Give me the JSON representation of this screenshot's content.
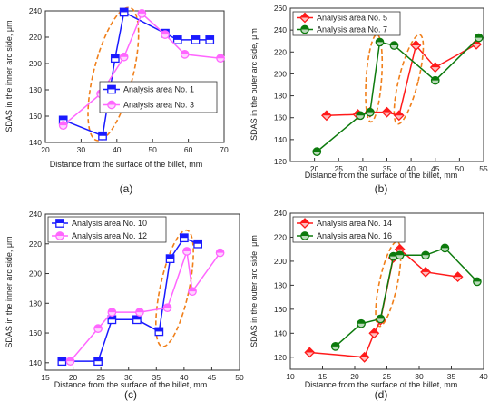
{
  "chart_data": [
    {
      "type": "line",
      "panel_label": "(a)",
      "xlabel": "Distance from the surface of the billet, mm",
      "ylabel": "SDAS in the inner arc side, μm",
      "xlim": [
        20,
        70
      ],
      "ylim": [
        140,
        240
      ],
      "xticks": [
        20,
        30,
        40,
        50,
        60,
        70
      ],
      "yticks": [
        140,
        160,
        180,
        200,
        220,
        240
      ],
      "legend_position": "center-right",
      "series": [
        {
          "name": "Analysis area No. 1",
          "color": "#1a1aff",
          "marker": "square",
          "x": [
            25,
            36,
            39.5,
            42,
            53.5,
            57,
            62,
            66
          ],
          "y": [
            157,
            145,
            204,
            239,
            223,
            218,
            218,
            218
          ]
        },
        {
          "name": "Analysis area No. 3",
          "color": "#ff66ff",
          "marker": "circle",
          "x": [
            25,
            35.5,
            42,
            47,
            53.5,
            59,
            69
          ],
          "y": [
            153,
            177,
            205,
            238,
            222,
            207,
            204
          ]
        }
      ],
      "annotation_ellipse": {
        "center": [
          39,
          192
        ],
        "rx": 5.5,
        "ry": 52,
        "rotation": 14
      }
    },
    {
      "type": "line",
      "panel_label": "(b)",
      "xlabel": "Distance from the surface of the billet, mm",
      "ylabel": "SDAS in the outer arc side, μm",
      "xlim": [
        15,
        55
      ],
      "ylim": [
        120,
        260
      ],
      "xticks": [
        20,
        25,
        30,
        35,
        40,
        45,
        50,
        55
      ],
      "yticks": [
        120,
        140,
        160,
        180,
        200,
        220,
        240,
        260
      ],
      "legend_position": "top-left",
      "series": [
        {
          "name": "Analysis area No. 5",
          "color": "#ff1a1a",
          "marker": "diamond",
          "x": [
            22.5,
            29,
            31.5,
            35,
            37.5,
            41,
            45,
            53.5
          ],
          "y": [
            162,
            163,
            165,
            165,
            162,
            226,
            206,
            227
          ]
        },
        {
          "name": "Analysis area No. 7",
          "color": "#0d7a0d",
          "marker": "circle",
          "x": [
            20.5,
            29.5,
            31.5,
            33.5,
            36.5,
            45,
            54
          ],
          "y": [
            129,
            162,
            165,
            229,
            226,
            194,
            233
          ]
        }
      ],
      "annotation_ellipses": [
        {
          "center": [
            32.3,
            196
          ],
          "rx": 1.6,
          "ry": 40,
          "rotation": 4
        },
        {
          "center": [
            39.5,
            195
          ],
          "rx": 2,
          "ry": 42,
          "rotation": 14
        }
      ]
    },
    {
      "type": "line",
      "panel_label": "(c)",
      "xlabel": "Distance from the surface of the billet, mm",
      "ylabel": "SDAS in the inner arc side, μm",
      "xlim": [
        15,
        50
      ],
      "ylim": [
        135,
        240
      ],
      "xticks": [
        15,
        20,
        25,
        30,
        35,
        40,
        45,
        50
      ],
      "yticks": [
        140,
        160,
        180,
        200,
        220,
        240
      ],
      "legend_position": "top-left",
      "series": [
        {
          "name": "Analysis area No. 10",
          "color": "#1a1aff",
          "marker": "square",
          "x": [
            18,
            24.5,
            27,
            31.5,
            35.5,
            37.5,
            40,
            42.5
          ],
          "y": [
            141,
            141,
            169,
            169,
            161,
            210,
            224,
            220
          ]
        },
        {
          "name": "Analysis area No. 12",
          "color": "#ff66ff",
          "marker": "circle",
          "x": [
            19.5,
            24.5,
            27,
            32,
            37,
            40.5,
            41.5,
            46.5
          ],
          "y": [
            141,
            163,
            174,
            174,
            177,
            215,
            188,
            214
          ]
        }
      ],
      "annotation_ellipse": {
        "center": [
          38.3,
          190
        ],
        "rx": 2.6,
        "ry": 40,
        "rotation": 12
      }
    },
    {
      "type": "line",
      "panel_label": "(d)",
      "xlabel": "Distance from the surface of the billet, mm",
      "ylabel": "SDAS in the outer arc side, μm",
      "xlim": [
        10,
        40
      ],
      "ylim": [
        110,
        240
      ],
      "xticks": [
        10,
        15,
        20,
        25,
        30,
        35,
        40
      ],
      "yticks": [
        120,
        140,
        160,
        180,
        200,
        220,
        240
      ],
      "legend_position": "top-left",
      "series": [
        {
          "name": "Analysis area No. 14",
          "color": "#ff1a1a",
          "marker": "diamond",
          "x": [
            13,
            21.5,
            23,
            24,
            26,
            27,
            31,
            36
          ],
          "y": [
            124,
            120,
            140,
            151,
            203,
            210,
            191,
            187
          ]
        },
        {
          "name": "Analysis area No. 16",
          "color": "#0d7a0d",
          "marker": "circle",
          "x": [
            17,
            21,
            24,
            26,
            27,
            31,
            34,
            39
          ],
          "y": [
            129,
            148,
            152,
            204,
            205,
            205,
            211,
            183
          ]
        }
      ],
      "annotation_ellipse": {
        "center": [
          25.2,
          181
        ],
        "rx": 1.4,
        "ry": 36,
        "rotation": 12
      }
    }
  ]
}
